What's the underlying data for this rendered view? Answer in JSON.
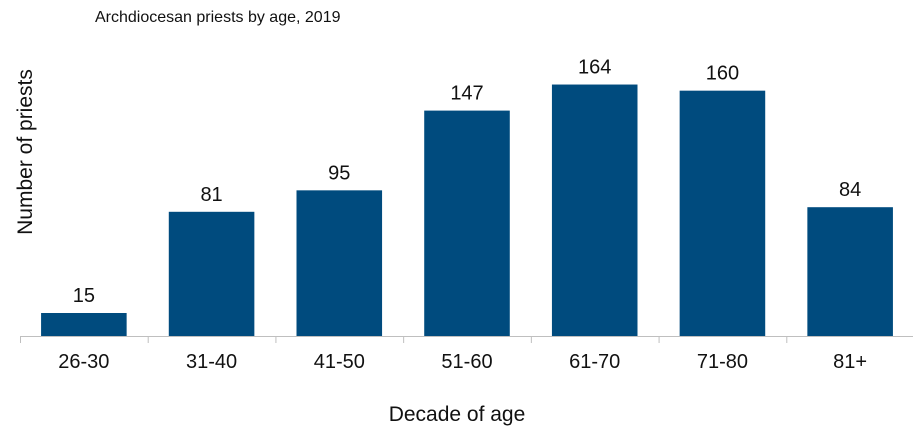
{
  "chart_data": {
    "type": "bar",
    "title": "Archdiocesan priests by age, 2019",
    "xlabel": "Decade of age",
    "ylabel": "Number of priests",
    "categories": [
      "26-30",
      "31-40",
      "41-50",
      "51-60",
      "61-70",
      "71-80",
      "81+"
    ],
    "values": [
      15,
      81,
      95,
      147,
      164,
      160,
      84
    ],
    "data_labels": [
      "15",
      "81",
      "95",
      "147",
      "164",
      "160",
      "84"
    ],
    "ylim": [
      0,
      180
    ],
    "grid": false,
    "legend": "none",
    "bar_color": "#004b7e"
  }
}
